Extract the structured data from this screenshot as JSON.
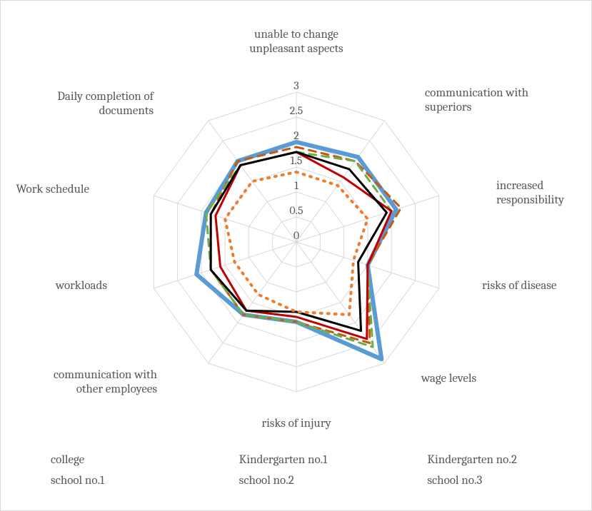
{
  "chart": {
    "type": "radar",
    "background_color": "#ffffff",
    "border_color": "#d9d9d9",
    "grid_color": "#d9d9d9",
    "grid_stroke_width": 1,
    "label_color": "#595959",
    "label_fontsize": 17,
    "tick_fontsize": 16,
    "axis_max": 3,
    "tick_step": 0.5,
    "ticks": [
      "0",
      "0.5",
      "1",
      "1.5",
      "2",
      "2.5",
      "3"
    ],
    "axes": [
      "unable to change\nunpleasant aspects",
      "communication with\nsuperiors",
      "increased\nresponsibility",
      "risks of disease",
      "wage levels",
      "risks of injury",
      "communication with\nother employees",
      "workloads",
      "Work schedule",
      "Daily completion of\ndocuments"
    ],
    "series": [
      {
        "name": "college",
        "color": "#5b9bd5",
        "stroke_width": 6,
        "dash": "",
        "values": [
          2.0,
          2.1,
          2.1,
          1.5,
          2.9,
          1.6,
          1.8,
          2.1,
          1.9,
          2.0
        ]
      },
      {
        "name": "Kindergarten no.1",
        "color": "#c55a11",
        "stroke_width": 3,
        "dash": "10 8",
        "values": [
          1.9,
          2.0,
          2.2,
          1.5,
          2.5,
          1.6,
          1.8,
          1.8,
          1.8,
          2.0
        ]
      },
      {
        "name": "Kindergarten no.2",
        "color": "#70ad47",
        "stroke_width": 3,
        "dash": "10 8",
        "values": [
          1.8,
          2.0,
          2.0,
          1.5,
          2.6,
          1.6,
          1.8,
          1.8,
          1.9,
          1.9
        ]
      },
      {
        "name": "school no.1",
        "color": "#c00000",
        "stroke_width": 3,
        "dash": "",
        "values": [
          1.8,
          1.6,
          2.0,
          1.5,
          2.4,
          1.5,
          1.7,
          1.6,
          1.7,
          1.9
        ]
      },
      {
        "name": "school no.2",
        "color": "#000000",
        "stroke_width": 3,
        "dash": "",
        "values": [
          1.8,
          1.8,
          1.9,
          1.3,
          2.2,
          1.4,
          1.7,
          1.8,
          1.8,
          1.9
        ]
      },
      {
        "name": "school no.3",
        "color": "#ed7d31",
        "stroke_width": 4,
        "dash": "2 8",
        "values": [
          1.4,
          1.4,
          1.5,
          1.2,
          1.8,
          1.4,
          1.3,
          1.3,
          1.5,
          1.5
        ]
      }
    ],
    "legend_position": "bottom"
  }
}
